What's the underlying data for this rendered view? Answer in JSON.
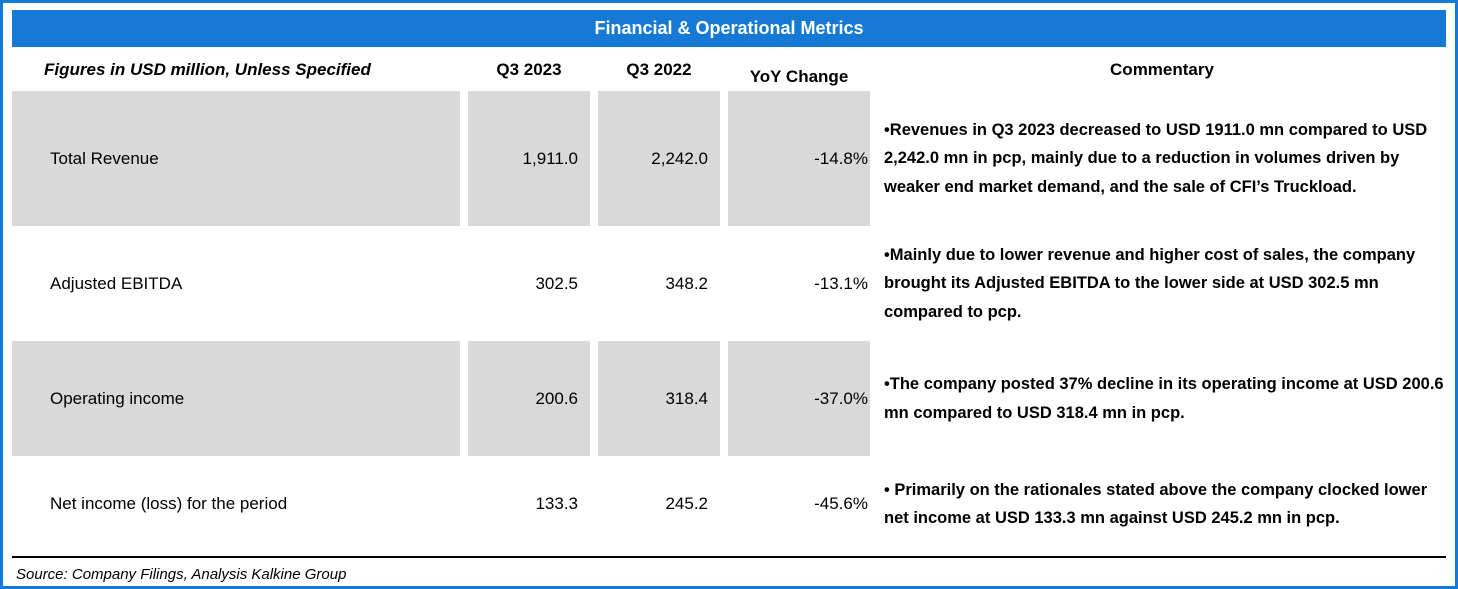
{
  "title": "Financial & Operational Metrics",
  "header": {
    "metric": "Figures in USD million, Unless Specified",
    "q3_2023": "Q3 2023",
    "q3_2022": "Q3 2022",
    "yoy": "YoY Change",
    "commentary": "Commentary"
  },
  "rows": [
    {
      "metric": "Total Revenue",
      "q3_2023": "1,911.0",
      "q3_2022": "2,242.0",
      "yoy": "-14.8%",
      "commentary": "•Revenues in Q3 2023 decreased to USD 1911.0 mn compared to USD 2,242.0 mn in pcp, mainly due to a reduction in volumes driven by weaker end market demand, and the sale of CFI’s Truckload."
    },
    {
      "metric": "Adjusted EBITDA",
      "q3_2023": "302.5",
      "q3_2022": "348.2",
      "yoy": "-13.1%",
      "commentary": "•Mainly due to lower revenue and higher cost of sales, the company brought its Adjusted EBITDA to the lower side at USD 302.5 mn compared to pcp."
    },
    {
      "metric": "Operating income",
      "q3_2023": "200.6",
      "q3_2022": "318.4",
      "yoy": "-37.0%",
      "commentary": "•The company posted 37% decline in its operating income at USD 200.6 mn compared to USD 318.4 mn in pcp."
    },
    {
      "metric": "Net income (loss) for the period",
      "q3_2023": "133.3",
      "q3_2022": "245.2",
      "yoy": "-45.6%",
      "commentary": "• Primarily on the rationales stated above the company clocked lower net income at USD 133.3 mn against USD 245.2 mn in pcp."
    }
  ],
  "source": "Source: Company Filings, Analysis Kalkine Group",
  "colors": {
    "header_blue": "#1779D6",
    "row_gray": "#D9D9D9",
    "border_blue": "#1779D6"
  },
  "chart_data": {
    "type": "table",
    "title": "Financial & Operational Metrics",
    "columns": [
      "Figures in USD million, Unless Specified",
      "Q3 2023",
      "Q3 2022",
      "YoY Change",
      "Commentary"
    ],
    "rows": [
      {
        "metric": "Total Revenue",
        "q3_2023": 1911.0,
        "q3_2022": 2242.0,
        "yoy_change_pct": -14.8
      },
      {
        "metric": "Adjusted EBITDA",
        "q3_2023": 302.5,
        "q3_2022": 348.2,
        "yoy_change_pct": -13.1
      },
      {
        "metric": "Operating income",
        "q3_2023": 200.6,
        "q3_2022": 318.4,
        "yoy_change_pct": -37.0
      },
      {
        "metric": "Net income (loss) for the period",
        "q3_2023": 133.3,
        "q3_2022": 245.2,
        "yoy_change_pct": -45.6
      }
    ],
    "units": "USD million",
    "source": "Company Filings, Analysis Kalkine Group"
  }
}
